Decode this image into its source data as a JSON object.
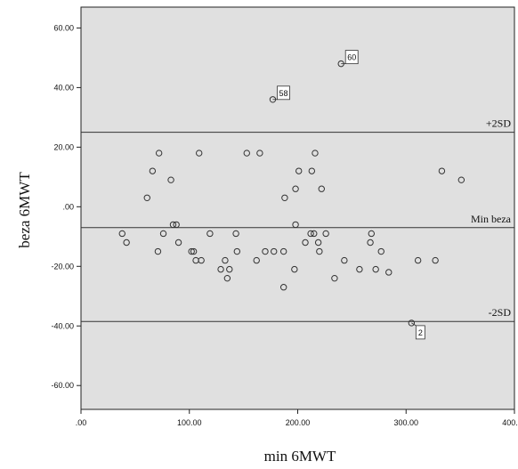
{
  "chart_data": {
    "type": "scatter",
    "xlabel": "min 6MWT",
    "ylabel": "beza 6MWT",
    "xlim": [
      0,
      400
    ],
    "ylim": [
      -68,
      67
    ],
    "x_ticks": [
      0,
      100,
      200,
      300,
      400
    ],
    "x_tick_labels": [
      ".00",
      "100.00",
      "200.00",
      "300.00",
      "400.00"
    ],
    "y_ticks": [
      60,
      40,
      20,
      0,
      -20,
      -40,
      -60
    ],
    "y_tick_labels": [
      "60.00",
      "40.00",
      "20.00",
      ".00",
      "-20.00",
      "-40.00",
      "-60.00"
    ],
    "grid": false,
    "background": "#e0e0e0",
    "reference_lines": [
      {
        "label": "+2SD",
        "y": 25
      },
      {
        "label": "Min beza",
        "y": -7
      },
      {
        "label": "-2SD",
        "y": -38.5
      }
    ],
    "annotations": [
      {
        "label": "60",
        "x": 240,
        "y": 48
      },
      {
        "label": "58",
        "x": 177,
        "y": 36
      },
      {
        "label": "2",
        "x": 305,
        "y": -39
      }
    ],
    "points": [
      {
        "x": 240,
        "y": 48
      },
      {
        "x": 177,
        "y": 36
      },
      {
        "x": 72,
        "y": 18
      },
      {
        "x": 109,
        "y": 18
      },
      {
        "x": 153,
        "y": 18
      },
      {
        "x": 165,
        "y": 18
      },
      {
        "x": 216,
        "y": 18
      },
      {
        "x": 333,
        "y": 12
      },
      {
        "x": 351,
        "y": 9
      },
      {
        "x": 66,
        "y": 12
      },
      {
        "x": 83,
        "y": 9
      },
      {
        "x": 201,
        "y": 12
      },
      {
        "x": 213,
        "y": 12
      },
      {
        "x": 61,
        "y": 3
      },
      {
        "x": 188,
        "y": 3
      },
      {
        "x": 198,
        "y": 6
      },
      {
        "x": 222,
        "y": 6
      },
      {
        "x": 85,
        "y": -6
      },
      {
        "x": 88,
        "y": -6
      },
      {
        "x": 198,
        "y": -6
      },
      {
        "x": 38,
        "y": -9
      },
      {
        "x": 76,
        "y": -9
      },
      {
        "x": 119,
        "y": -9
      },
      {
        "x": 143,
        "y": -9
      },
      {
        "x": 212,
        "y": -9
      },
      {
        "x": 215,
        "y": -9
      },
      {
        "x": 226,
        "y": -9
      },
      {
        "x": 268,
        "y": -9
      },
      {
        "x": 42,
        "y": -12
      },
      {
        "x": 90,
        "y": -12
      },
      {
        "x": 207,
        "y": -12
      },
      {
        "x": 219,
        "y": -12
      },
      {
        "x": 267,
        "y": -12
      },
      {
        "x": 71,
        "y": -15
      },
      {
        "x": 102,
        "y": -15
      },
      {
        "x": 104,
        "y": -15
      },
      {
        "x": 144,
        "y": -15
      },
      {
        "x": 170,
        "y": -15
      },
      {
        "x": 178,
        "y": -15
      },
      {
        "x": 187,
        "y": -15
      },
      {
        "x": 220,
        "y": -15
      },
      {
        "x": 277,
        "y": -15
      },
      {
        "x": 106,
        "y": -18
      },
      {
        "x": 111,
        "y": -18
      },
      {
        "x": 133,
        "y": -18
      },
      {
        "x": 162,
        "y": -18
      },
      {
        "x": 243,
        "y": -18
      },
      {
        "x": 311,
        "y": -18
      },
      {
        "x": 327,
        "y": -18
      },
      {
        "x": 129,
        "y": -21
      },
      {
        "x": 137,
        "y": -21
      },
      {
        "x": 197,
        "y": -21
      },
      {
        "x": 257,
        "y": -21
      },
      {
        "x": 272,
        "y": -21
      },
      {
        "x": 284,
        "y": -22
      },
      {
        "x": 135,
        "y": -24
      },
      {
        "x": 234,
        "y": -24
      },
      {
        "x": 187,
        "y": -27
      },
      {
        "x": 305,
        "y": -39
      }
    ]
  }
}
